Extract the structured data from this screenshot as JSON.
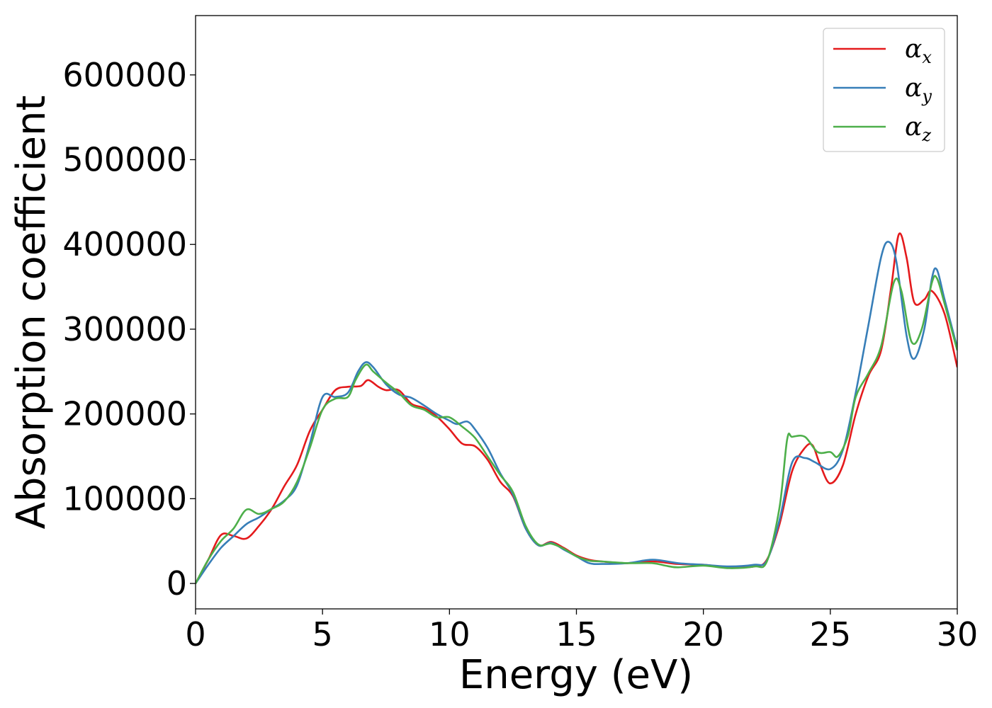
{
  "chart_data": {
    "type": "line",
    "title": "",
    "xlabel": "Energy (eV)",
    "ylabel": "Absorption coefficient",
    "xlim": [
      0,
      30
    ],
    "ylim": [
      -30000,
      670000
    ],
    "xticks": [
      0,
      5,
      10,
      15,
      20,
      25,
      30
    ],
    "xtick_labels": [
      "0",
      "5",
      "10",
      "15",
      "20",
      "25",
      "30"
    ],
    "yticks": [
      0,
      100000,
      200000,
      300000,
      400000,
      500000,
      600000
    ],
    "ytick_labels": [
      "0",
      "100000",
      "200000",
      "300000",
      "400000",
      "500000",
      "600000"
    ],
    "grid": false,
    "legend": "top-right",
    "series": [
      {
        "name": "α",
        "subscript": "x",
        "color": "#e41a1c",
        "points": [
          [
            0,
            0
          ],
          [
            0.5,
            28000
          ],
          [
            1,
            57000
          ],
          [
            1.5,
            56000
          ],
          [
            2,
            53000
          ],
          [
            2.5,
            68000
          ],
          [
            3,
            88000
          ],
          [
            3.5,
            115000
          ],
          [
            4,
            140000
          ],
          [
            4.5,
            180000
          ],
          [
            5,
            205000
          ],
          [
            5.5,
            228000
          ],
          [
            6,
            232000
          ],
          [
            6.5,
            233000
          ],
          [
            6.8,
            240000
          ],
          [
            7.2,
            232000
          ],
          [
            7.5,
            228000
          ],
          [
            8,
            228000
          ],
          [
            8.5,
            212000
          ],
          [
            9,
            207000
          ],
          [
            9.5,
            197000
          ],
          [
            10,
            182000
          ],
          [
            10.5,
            165000
          ],
          [
            11,
            162000
          ],
          [
            11.5,
            146000
          ],
          [
            12,
            120000
          ],
          [
            12.5,
            103000
          ],
          [
            13,
            65000
          ],
          [
            13.5,
            45000
          ],
          [
            14,
            49000
          ],
          [
            14.5,
            42000
          ],
          [
            15,
            33000
          ],
          [
            15.5,
            28000
          ],
          [
            16,
            26000
          ],
          [
            17,
            24000
          ],
          [
            18,
            26000
          ],
          [
            19,
            23000
          ],
          [
            20,
            22000
          ],
          [
            21,
            19000
          ],
          [
            22,
            20000
          ],
          [
            22.5,
            28000
          ],
          [
            23,
            70000
          ],
          [
            23.5,
            133000
          ],
          [
            24,
            160000
          ],
          [
            24.3,
            163000
          ],
          [
            24.6,
            140000
          ],
          [
            25,
            118000
          ],
          [
            25.5,
            140000
          ],
          [
            26,
            200000
          ],
          [
            26.5,
            245000
          ],
          [
            27,
            275000
          ],
          [
            27.4,
            350000
          ],
          [
            27.7,
            412000
          ],
          [
            28,
            385000
          ],
          [
            28.3,
            332000
          ],
          [
            28.7,
            335000
          ],
          [
            29,
            345000
          ],
          [
            29.5,
            318000
          ],
          [
            30,
            255000
          ]
        ]
      },
      {
        "name": "α",
        "subscript": "y",
        "color": "#377eb8",
        "points": [
          [
            0,
            0
          ],
          [
            0.5,
            22000
          ],
          [
            1,
            42000
          ],
          [
            1.5,
            56000
          ],
          [
            2,
            70000
          ],
          [
            2.5,
            78000
          ],
          [
            3,
            88000
          ],
          [
            3.5,
            98000
          ],
          [
            4,
            116000
          ],
          [
            4.5,
            165000
          ],
          [
            5,
            220000
          ],
          [
            5.5,
            220000
          ],
          [
            6,
            225000
          ],
          [
            6.4,
            250000
          ],
          [
            6.7,
            261000
          ],
          [
            7,
            255000
          ],
          [
            7.5,
            235000
          ],
          [
            8,
            223000
          ],
          [
            8.5,
            219000
          ],
          [
            9,
            210000
          ],
          [
            9.5,
            200000
          ],
          [
            10,
            192000
          ],
          [
            10.3,
            188000
          ],
          [
            10.7,
            191000
          ],
          [
            11,
            182000
          ],
          [
            11.5,
            160000
          ],
          [
            12,
            130000
          ],
          [
            12.5,
            105000
          ],
          [
            13,
            65000
          ],
          [
            13.5,
            45000
          ],
          [
            14,
            48000
          ],
          [
            14.5,
            40000
          ],
          [
            15,
            32000
          ],
          [
            15.5,
            24000
          ],
          [
            16,
            23000
          ],
          [
            17,
            24000
          ],
          [
            18,
            28000
          ],
          [
            19,
            24000
          ],
          [
            20,
            22000
          ],
          [
            21,
            20000
          ],
          [
            22,
            22000
          ],
          [
            22.5,
            27000
          ],
          [
            23,
            75000
          ],
          [
            23.5,
            143000
          ],
          [
            24,
            148000
          ],
          [
            24.4,
            143000
          ],
          [
            25,
            135000
          ],
          [
            25.5,
            158000
          ],
          [
            26,
            225000
          ],
          [
            26.5,
            305000
          ],
          [
            27,
            385000
          ],
          [
            27.3,
            403000
          ],
          [
            27.6,
            380000
          ],
          [
            28,
            293000
          ],
          [
            28.3,
            265000
          ],
          [
            28.7,
            300000
          ],
          [
            29,
            360000
          ],
          [
            29.2,
            370000
          ],
          [
            29.5,
            335000
          ],
          [
            30,
            278000
          ]
        ]
      },
      {
        "name": "α",
        "subscript": "z",
        "color": "#4daf4a",
        "points": [
          [
            0,
            0
          ],
          [
            0.5,
            28000
          ],
          [
            1,
            50000
          ],
          [
            1.5,
            65000
          ],
          [
            2,
            87000
          ],
          [
            2.5,
            82000
          ],
          [
            3,
            88000
          ],
          [
            3.5,
            97000
          ],
          [
            4,
            120000
          ],
          [
            4.5,
            160000
          ],
          [
            5,
            205000
          ],
          [
            5.5,
            218000
          ],
          [
            6,
            220000
          ],
          [
            6.3,
            240000
          ],
          [
            6.7,
            258000
          ],
          [
            7,
            250000
          ],
          [
            7.5,
            237000
          ],
          [
            8,
            225000
          ],
          [
            8.5,
            210000
          ],
          [
            9,
            205000
          ],
          [
            9.5,
            196000
          ],
          [
            10,
            196000
          ],
          [
            10.5,
            185000
          ],
          [
            11,
            172000
          ],
          [
            11.5,
            150000
          ],
          [
            12,
            128000
          ],
          [
            12.5,
            108000
          ],
          [
            13,
            68000
          ],
          [
            13.5,
            46000
          ],
          [
            14,
            47000
          ],
          [
            14.5,
            41000
          ],
          [
            15,
            32000
          ],
          [
            15.5,
            27000
          ],
          [
            16,
            26000
          ],
          [
            17,
            24000
          ],
          [
            18,
            24000
          ],
          [
            18.5,
            21000
          ],
          [
            19,
            19000
          ],
          [
            20,
            21000
          ],
          [
            21,
            18000
          ],
          [
            22,
            20000
          ],
          [
            22.5,
            26000
          ],
          [
            23,
            90000
          ],
          [
            23.3,
            170000
          ],
          [
            23.5,
            173000
          ],
          [
            24,
            173000
          ],
          [
            24.5,
            155000
          ],
          [
            25,
            155000
          ],
          [
            25.3,
            150000
          ],
          [
            25.7,
            175000
          ],
          [
            26,
            220000
          ],
          [
            26.5,
            248000
          ],
          [
            27,
            280000
          ],
          [
            27.5,
            355000
          ],
          [
            27.8,
            345000
          ],
          [
            28.2,
            285000
          ],
          [
            28.6,
            300000
          ],
          [
            29,
            355000
          ],
          [
            29.2,
            360000
          ],
          [
            29.5,
            330000
          ],
          [
            30,
            275000
          ]
        ]
      }
    ]
  }
}
